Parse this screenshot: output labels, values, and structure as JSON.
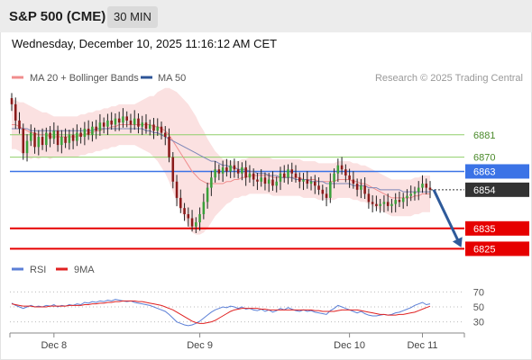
{
  "header": {
    "title": "S&P 500 (CME)",
    "timeframe": "30 MIN"
  },
  "datetime": "Wednesday, December 10, 2025 11:16:12 AM CET",
  "legend": {
    "ma20_label": "MA 20 + Bollinger Bands",
    "ma50_label": "MA 50",
    "credit": "Research © 2025 Trading Central",
    "ma20_color": "#f08d8d",
    "ma50_color": "#2e5597"
  },
  "rsi_legend": {
    "rsi_label": "RSI",
    "ma9_label": "9MA",
    "rsi_color": "#5b7fd6",
    "ma9_color": "#e02020"
  },
  "chart_data": [
    {
      "type": "candlestick",
      "title": "",
      "ylim": [
        6819,
        6903
      ],
      "x_ticks": [
        "Dec 8",
        "Dec 9",
        "Dec 10",
        "Dec 11"
      ],
      "levels": [
        {
          "value": 6881,
          "label": "6881",
          "kind": "resistance",
          "color": "#8fcf6a"
        },
        {
          "value": 6870,
          "label": "6870",
          "kind": "resistance",
          "color": "#8fcf6a"
        },
        {
          "value": 6863,
          "label": "6863",
          "kind": "pivot",
          "color": "#3b73e6"
        },
        {
          "value": 6854,
          "label": "6854",
          "kind": "last",
          "color": "#333333"
        },
        {
          "value": 6835,
          "label": "6835",
          "kind": "support",
          "color": "#e60000"
        },
        {
          "value": 6825,
          "label": "6825",
          "kind": "support",
          "color": "#e60000"
        }
      ],
      "candles_close": [
        6896,
        6888,
        6884,
        6872,
        6878,
        6882,
        6875,
        6880,
        6876,
        6882,
        6879,
        6883,
        6876,
        6880,
        6877,
        6881,
        6878,
        6882,
        6880,
        6884,
        6881,
        6885,
        6883,
        6887,
        6885,
        6888,
        6886,
        6889,
        6887,
        6890,
        6888,
        6886,
        6889,
        6885,
        6887,
        6884,
        6886,
        6883,
        6885,
        6882,
        6880,
        6870,
        6858,
        6850,
        6845,
        6842,
        6840,
        6836,
        6838,
        6842,
        6848,
        6855,
        6860,
        6864,
        6862,
        6865,
        6863,
        6866,
        6864,
        6862,
        6865,
        6860,
        6862,
        6859,
        6858,
        6860,
        6857,
        6859,
        6856,
        6858,
        6862,
        6860,
        6864,
        6862,
        6860,
        6858,
        6859,
        6857,
        6858,
        6856,
        6854,
        6852,
        6850,
        6858,
        6862,
        6866,
        6864,
        6861,
        6859,
        6857,
        6854,
        6856,
        6852,
        6848,
        6847,
        6846,
        6847,
        6848,
        6846,
        6847,
        6849,
        6848,
        6850,
        6851,
        6852,
        6853,
        6855,
        6857,
        6855,
        6854
      ],
      "ma20": [
        6886,
        6886,
        6885,
        6884,
        6883,
        6882,
        6882,
        6881,
        6881,
        6881,
        6880,
        6880,
        6880,
        6880,
        6880,
        6880,
        6880,
        6880,
        6881,
        6881,
        6882,
        6882,
        6883,
        6883,
        6884,
        6884,
        6885,
        6885,
        6886,
        6886,
        6886,
        6886,
        6886,
        6886,
        6886,
        6886,
        6886,
        6885,
        6885,
        6884,
        6883,
        6881,
        6878,
        6875,
        6872,
        6869,
        6866,
        6863,
        6861,
        6859,
        6858,
        6857,
        6857,
        6857,
        6857,
        6857,
        6858,
        6858,
        6859,
        6859,
        6860,
        6860,
        6861,
        6861,
        6861,
        6861,
        6861,
        6861,
        6860,
        6860,
        6860,
        6860,
        6860,
        6860,
        6860,
        6860,
        6859,
        6859,
        6859,
        6859,
        6858,
        6858,
        6858,
        6858,
        6858,
        6859,
        6859,
        6859,
        6859,
        6858,
        6858,
        6857,
        6857,
        6856,
        6855,
        6854,
        6853,
        6852,
        6851,
        6850,
        6850,
        6850,
        6850,
        6850,
        6850,
        6851,
        6851,
        6852,
        6852,
        6852
      ],
      "ma50": [
        6884,
        6884,
        6884,
        6884,
        6884,
        6883,
        6883,
        6883,
        6883,
        6883,
        6883,
        6883,
        6883,
        6883,
        6883,
        6883,
        6883,
        6883,
        6883,
        6883,
        6883,
        6883,
        6884,
        6884,
        6884,
        6884,
        6884,
        6884,
        6884,
        6884,
        6884,
        6884,
        6884,
        6884,
        6884,
        6883,
        6883,
        6882,
        6882,
        6881,
        6880,
        6879,
        6878,
        6877,
        6876,
        6875,
        6874,
        6873,
        6872,
        6871,
        6870,
        6869,
        6868,
        6868,
        6867,
        6866,
        6866,
        6865,
        6865,
        6864,
        6864,
        6864,
        6863,
        6863,
        6862,
        6862,
        6862,
        6861,
        6861,
        6861,
        6860,
        6860,
        6860,
        6860,
        6859,
        6859,
        6859,
        6859,
        6858,
        6858,
        6858,
        6858,
        6857,
        6857,
        6857,
        6857,
        6857,
        6857,
        6857,
        6856,
        6856,
        6856,
        6856,
        6855,
        6855,
        6855,
        6854,
        6854,
        6854,
        6854,
        6854,
        6854,
        6853,
        6853,
        6853,
        6853,
        6853,
        6853,
        6853,
        6853
      ],
      "bb_width": [
        12,
        12,
        12,
        13,
        13,
        13,
        12,
        12,
        11,
        11,
        11,
        10,
        10,
        10,
        10,
        10,
        10,
        10,
        10,
        10,
        10,
        10,
        10,
        10,
        10,
        10,
        10,
        10,
        10,
        10,
        10,
        10,
        10,
        11,
        12,
        13,
        14,
        15,
        17,
        19,
        21,
        23,
        25,
        27,
        28,
        29,
        30,
        30,
        29,
        27,
        25,
        22,
        19,
        16,
        14,
        12,
        11,
        10,
        9,
        9,
        9,
        9,
        9,
        9,
        9,
        9,
        9,
        9,
        9,
        9,
        9,
        9,
        9,
        9,
        9,
        9,
        9,
        9,
        9,
        9,
        9,
        9,
        9,
        9,
        9,
        9,
        9,
        9,
        9,
        9,
        9,
        9,
        9,
        9,
        9,
        9,
        9,
        9,
        9,
        9,
        9,
        9,
        9,
        9,
        9,
        9,
        9,
        9,
        9,
        9
      ],
      "projection": {
        "from": 6854,
        "to": 6825
      }
    },
    {
      "type": "line",
      "title": "RSI",
      "ylim": [
        20,
        80
      ],
      "y_ticks": [
        70,
        50,
        30
      ],
      "rsi": [
        55,
        52,
        50,
        48,
        50,
        52,
        50,
        51,
        50,
        52,
        51,
        53,
        50,
        52,
        51,
        53,
        52,
        54,
        53,
        56,
        55,
        57,
        56,
        58,
        57,
        59,
        58,
        60,
        59,
        58,
        57,
        58,
        56,
        55,
        54,
        53,
        52,
        50,
        48,
        46,
        44,
        40,
        35,
        30,
        28,
        26,
        25,
        26,
        28,
        31,
        35,
        39,
        43,
        46,
        48,
        50,
        49,
        51,
        50,
        48,
        50,
        47,
        48,
        46,
        45,
        47,
        44,
        46,
        43,
        45,
        48,
        46,
        49,
        47,
        45,
        44,
        46,
        44,
        45,
        43,
        42,
        41,
        40,
        45,
        48,
        52,
        50,
        48,
        46,
        44,
        42,
        44,
        41,
        39,
        38,
        38,
        39,
        40,
        39,
        40,
        42,
        43,
        45,
        47,
        49,
        52,
        54,
        56,
        53,
        54
      ],
      "ma9": [
        54,
        53,
        52,
        51,
        51,
        51,
        50,
        50,
        50,
        50,
        51,
        51,
        51,
        51,
        51,
        52,
        52,
        52,
        52,
        53,
        53,
        54,
        54,
        55,
        55,
        56,
        56,
        57,
        57,
        58,
        58,
        58,
        58,
        57,
        57,
        56,
        55,
        54,
        53,
        52,
        50,
        48,
        46,
        43,
        40,
        37,
        34,
        31,
        29,
        28,
        28,
        29,
        30,
        32,
        35,
        38,
        41,
        44,
        46,
        47,
        48,
        48,
        48,
        48,
        48,
        47,
        47,
        46,
        46,
        46,
        46,
        46,
        46,
        46,
        46,
        46,
        46,
        46,
        46,
        45,
        45,
        44,
        44,
        44,
        44,
        45,
        46,
        46,
        46,
        46,
        46,
        45,
        44,
        43,
        42,
        41,
        40,
        40,
        39,
        39,
        39,
        40,
        40,
        41,
        42,
        43,
        45,
        47,
        49,
        51
      ]
    }
  ]
}
